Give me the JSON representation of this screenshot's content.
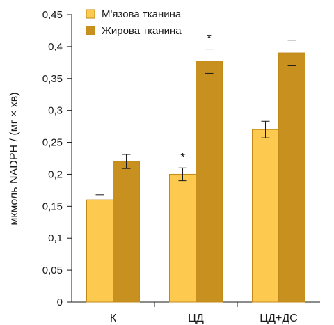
{
  "chart_data": {
    "type": "bar",
    "ylabel": "мкмоль NADPH / (мг × хв)",
    "ylim": [
      0,
      0.45
    ],
    "y_ticks": [
      "0",
      "0,05",
      "0,1",
      "0,15",
      "0,2",
      "0,25",
      "0,3",
      "0,35",
      "0,4",
      "0,45"
    ],
    "categories": [
      "К",
      "ЦД",
      "ЦД+ДС"
    ],
    "legend_position": "top-left",
    "grid": false,
    "series": [
      {
        "name": "М'язова тканина",
        "color": "#FDC94E",
        "values": [
          0.16,
          0.2,
          0.27
        ],
        "errors": [
          0.008,
          0.01,
          0.013
        ],
        "significance": [
          "",
          "*",
          ""
        ]
      },
      {
        "name": "Жирова тканина",
        "color": "#C8901E",
        "values": [
          0.22,
          0.377,
          0.39
        ],
        "errors": [
          0.011,
          0.019,
          0.02
        ],
        "significance": [
          "",
          "*",
          ""
        ]
      }
    ]
  }
}
